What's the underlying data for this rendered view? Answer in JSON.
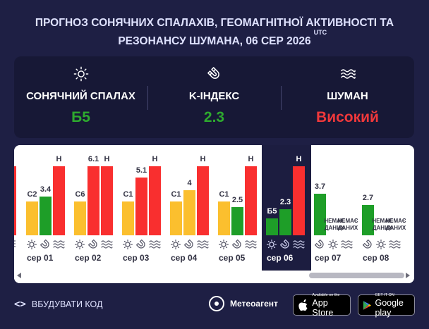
{
  "title": {
    "line1": "ПРОГНОЗ СОНЯЧНИХ СПАЛАХІВ, ГЕОМАГНІТНОЇ АКТИВНОСТІ ТА",
    "line2": "РЕЗОНАНСУ ШУМАНА, 06 СЕР 2026",
    "utc": "UTC"
  },
  "summary": [
    {
      "icon": "sun-icon",
      "label": "СОНЯЧНИЙ СПАЛАХ",
      "value": "Б5",
      "color": "#2eaa2e"
    },
    {
      "icon": "magnet-icon",
      "label": "K-ІНДЕКС",
      "value": "2.3",
      "color": "#2eaa2e"
    },
    {
      "icon": "waves-icon",
      "label": "ШУМАН",
      "value": "Високий",
      "color": "#f0383b"
    }
  ],
  "colors": {
    "flare": "#fbbf2e",
    "kindex": "#1e9e28",
    "schumann": "#f92f2f",
    "icon": "#555566",
    "today_band": "#1c1d40",
    "day_label": "#333344"
  },
  "chart_data": {
    "type": "bar",
    "categories": [
      "сер 01",
      "сер 02",
      "сер 03",
      "сер 04",
      "сер 05",
      "сер 06",
      "сер 07",
      "сер 08"
    ],
    "today_index": 5,
    "series": [
      {
        "key": "flare",
        "labels": [
          "C2",
          "C6",
          "C1",
          "C1",
          "C1",
          "Б5",
          "НЕМАЄ ДАНИХ",
          "НЕМАЄ ДАНИХ"
        ]
      },
      {
        "key": "kindex",
        "values": [
          3.4,
          6.1,
          5.1,
          4,
          2.5,
          2.3,
          3.7,
          2.7
        ],
        "labels": [
          "3.4",
          "6.1",
          "5.1",
          "4",
          "2.5",
          "2.3",
          "3.7",
          "2.7"
        ]
      },
      {
        "key": "schumann",
        "labels": [
          "Н",
          "Н",
          "Н",
          "Н",
          "Н",
          "Н",
          "НЕМАЄ ДАНИХ",
          "НЕМАЄ ДАНИХ"
        ]
      }
    ]
  },
  "footer": {
    "embed_label": "ВБУДУВАТИ КОД",
    "brand": "Метеоагент",
    "appstore_small": "Available on the",
    "appstore_big": "App Store",
    "google_small": "GET IT ON",
    "google_big": "Google play"
  }
}
